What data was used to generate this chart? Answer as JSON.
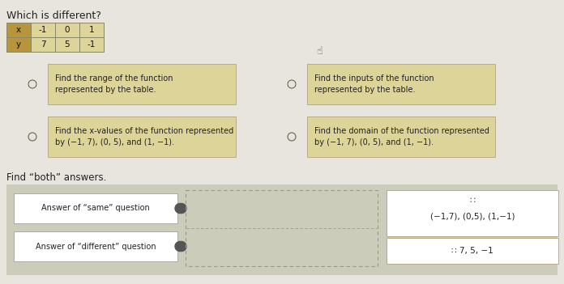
{
  "title": "Which is different?",
  "bg_color": "#e8e4de",
  "table": {
    "headers": [
      "x",
      "-1",
      "0",
      "1"
    ],
    "row2": [
      "y",
      "7",
      "5",
      "-1"
    ],
    "header_bg": "#b8943a",
    "cell_bg": "#ddd49a"
  },
  "options": [
    {
      "text": "Find the range of the function\nrepresented by the table.",
      "col": 0,
      "row": 0
    },
    {
      "text": "Find the inputs of the function\nrepresented by the table.",
      "col": 1,
      "row": 0
    },
    {
      "text": "Find the x-values of the function represented\nby (−1, 7), (0, 5), and (1, −1).",
      "col": 0,
      "row": 1
    },
    {
      "text": "Find the domain of the function represented\nby (−1, 7), (0, 5), and (1, −1).",
      "col": 1,
      "row": 1
    }
  ],
  "option_box_color": "#ddd49a",
  "answer_same_label": "Answer of “same” question",
  "answer_diff_label": "Answer of “different” question",
  "answer_same_text": "(−1,7), (0,5), (1,−1)",
  "answer_diff_text": "∷ 7, 5, −1",
  "answer_same_icon": "∷",
  "find_both_text": "Find “both” answers."
}
